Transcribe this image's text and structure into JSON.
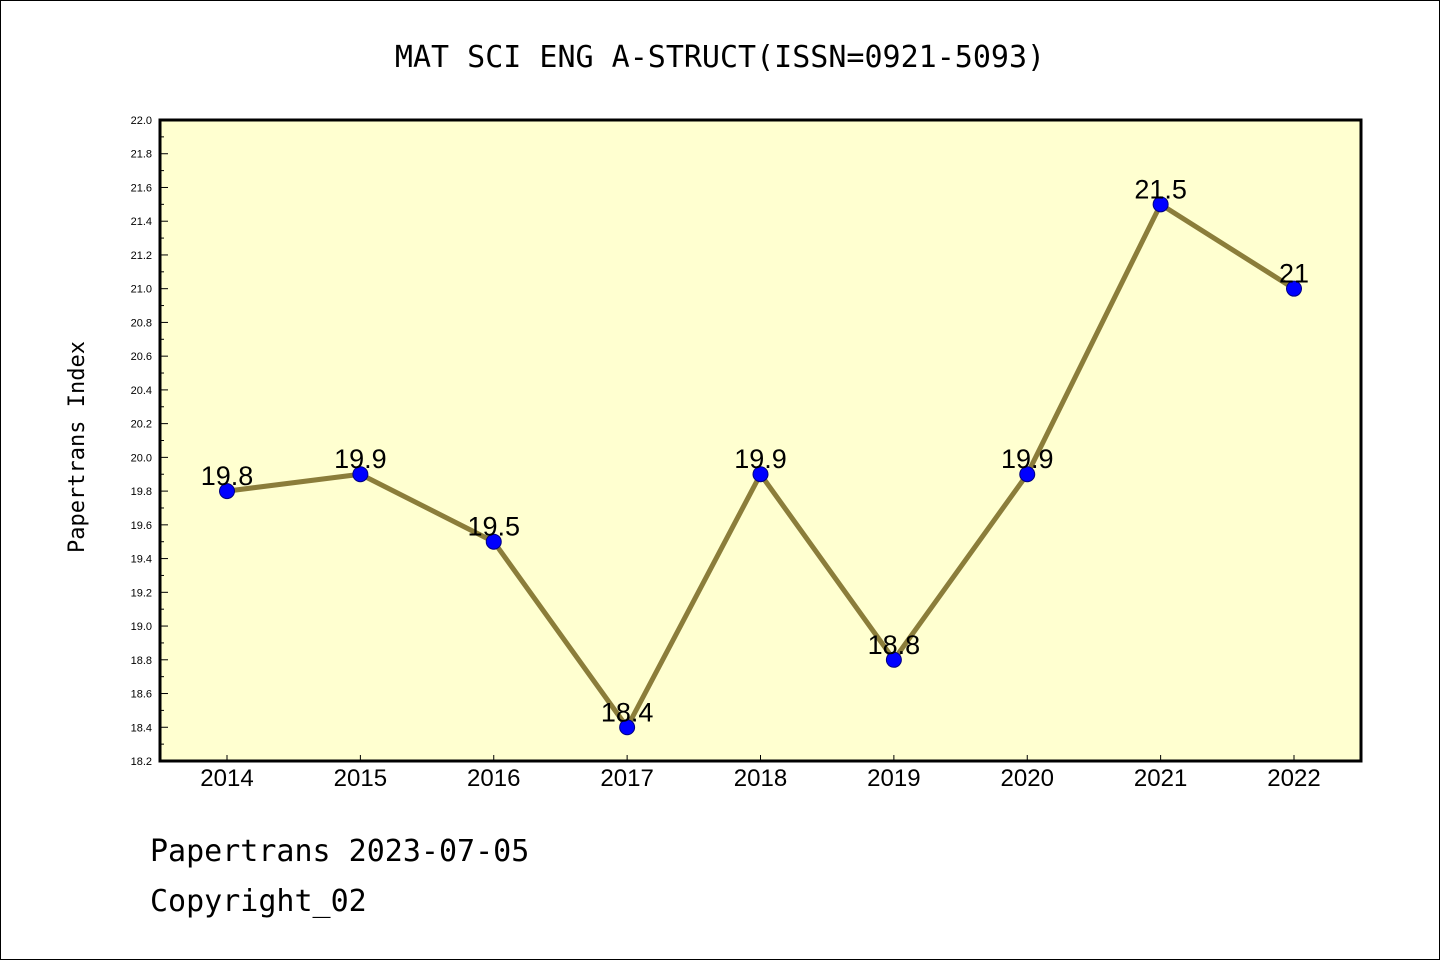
{
  "chart_data": {
    "type": "line",
    "title": "MAT SCI ENG A-STRUCT(ISSN=0921-5093)",
    "xlabel": "",
    "ylabel": "Papertrans Index",
    "categories": [
      "2014",
      "2015",
      "2016",
      "2017",
      "2018",
      "2019",
      "2020",
      "2021",
      "2022"
    ],
    "values": [
      19.8,
      19.9,
      19.5,
      18.4,
      19.9,
      18.8,
      19.9,
      21.5,
      21.0
    ],
    "data_labels": [
      "19.8",
      "19.9",
      "19.5",
      "18.4",
      "19.9",
      "18.8",
      "19.9",
      "21.5",
      "21"
    ],
    "ylim": [
      18.2,
      22.0
    ],
    "yticks": [
      "18.2",
      "18.4",
      "18.6",
      "18.8",
      "19.0",
      "19.2",
      "19.4",
      "19.6",
      "19.8",
      "20.0",
      "20.2",
      "20.4",
      "20.6",
      "20.8",
      "21.0",
      "21.2",
      "21.4",
      "21.6",
      "21.8",
      "22.0"
    ],
    "grid": false,
    "legend": "none",
    "colors": {
      "plot_background": "#ffffd0",
      "line": "#8b7d3a",
      "marker_fill": "#0000ff",
      "marker_stroke": "#000080"
    }
  },
  "footer": {
    "date_line": "Papertrans 2023-07-05",
    "copyright_line": "Copyright_02"
  }
}
